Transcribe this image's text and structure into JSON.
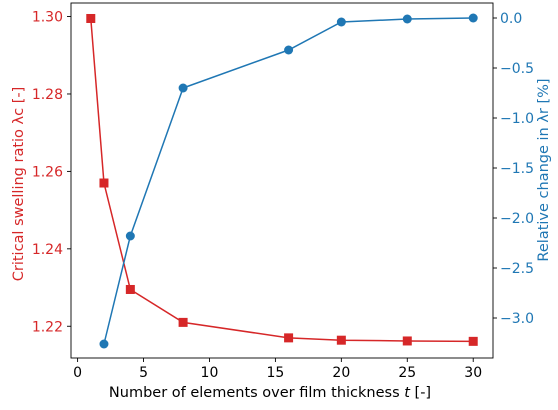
{
  "chart_data": {
    "type": "line",
    "xlabel": "Number of elements over film thickness t [-]",
    "ylabel_left": "Critical swelling ratio λc [-]",
    "ylabel_right": "Relative change in λr [%]",
    "xlim": [
      -0.5,
      31.5
    ],
    "ylim_left": [
      1.2118,
      1.3035
    ],
    "ylim_right": [
      -3.4,
      0.15
    ],
    "x_ticks": [
      0,
      5,
      10,
      15,
      20,
      25,
      30
    ],
    "y_ticks_left": [
      1.22,
      1.24,
      1.26,
      1.28,
      1.3
    ],
    "y_ticks_right": [
      0.0,
      -0.5,
      -1.0,
      -1.5,
      -2.0,
      -2.5,
      -3.0
    ],
    "grid": false,
    "colors": {
      "left": "#d62728",
      "right": "#1f77b4"
    },
    "series": [
      {
        "axis": "left",
        "marker": "square",
        "x": [
          1,
          2,
          4,
          8,
          16,
          20,
          25,
          30
        ],
        "values": [
          1.2995,
          1.257,
          1.2295,
          1.221,
          1.217,
          1.2164,
          1.2162,
          1.2161
        ]
      },
      {
        "axis": "right",
        "marker": "circle",
        "x": [
          2,
          4,
          8,
          16,
          20,
          25,
          30
        ],
        "values": [
          -3.26,
          -2.18,
          -0.7,
          -0.32,
          -0.04,
          -0.01,
          0.0
        ]
      }
    ]
  }
}
